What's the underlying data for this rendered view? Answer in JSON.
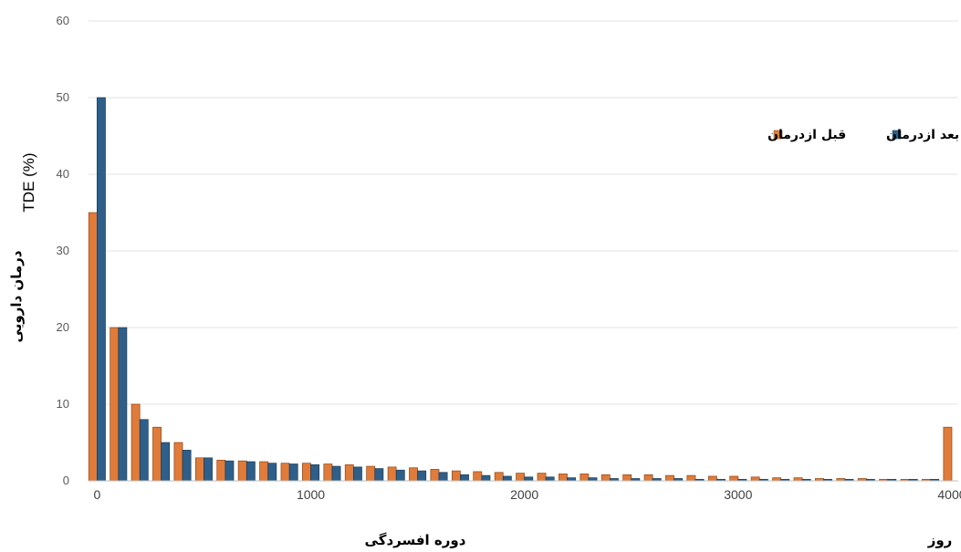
{
  "chart_data": {
    "type": "bar",
    "ylabel_persian": "درمان دارویی",
    "ylabel_latin": "TDE (%)",
    "xlabel": "دوره افسردگی",
    "x_unit": "روز",
    "ylim": [
      0,
      60
    ],
    "y_ticks": [
      0,
      10,
      20,
      30,
      40,
      50,
      60
    ],
    "xlim": [
      -40,
      4030
    ],
    "x_ticks": [
      0,
      1000,
      2000,
      3000,
      4000
    ],
    "grid": true,
    "legend_position": "top-right",
    "colors": {
      "before": "#E07B39",
      "after": "#2E5F8A"
    },
    "x": [
      0,
      100,
      200,
      300,
      400,
      500,
      600,
      700,
      800,
      900,
      1000,
      1100,
      1200,
      1300,
      1400,
      1500,
      1600,
      1700,
      1800,
      1900,
      2000,
      2100,
      2200,
      2300,
      2400,
      2500,
      2600,
      2700,
      2800,
      2900,
      3000,
      3100,
      3200,
      3300,
      3400,
      3500,
      3600,
      3700,
      3800,
      3900,
      4000
    ],
    "series": [
      {
        "name": "قبل ازدرمان",
        "key": "before",
        "values": [
          35,
          20,
          10,
          7,
          5,
          3,
          2.7,
          2.6,
          2.5,
          2.3,
          2.3,
          2.2,
          2.1,
          1.9,
          1.8,
          1.7,
          1.5,
          1.3,
          1.2,
          1.1,
          1,
          1,
          0.9,
          0.9,
          0.8,
          0.8,
          0.8,
          0.7,
          0.7,
          0.6,
          0.6,
          0.5,
          0.4,
          0.4,
          0.3,
          0.3,
          0.3,
          0.2,
          0.2,
          0.2,
          7
        ]
      },
      {
        "name": "بعد ازدرمان",
        "key": "after",
        "values": [
          50,
          20,
          8,
          5,
          4,
          3,
          2.6,
          2.5,
          2.3,
          2.2,
          2.1,
          1.9,
          1.8,
          1.6,
          1.4,
          1.3,
          1.1,
          0.8,
          0.7,
          0.6,
          0.5,
          0.5,
          0.4,
          0.4,
          0.3,
          0.3,
          0.3,
          0.3,
          0.2,
          0.2,
          0.2,
          0.2,
          0.2,
          0.2,
          0.2,
          0.2,
          0.2,
          0.2,
          0.2,
          0.2,
          0
        ]
      }
    ]
  }
}
